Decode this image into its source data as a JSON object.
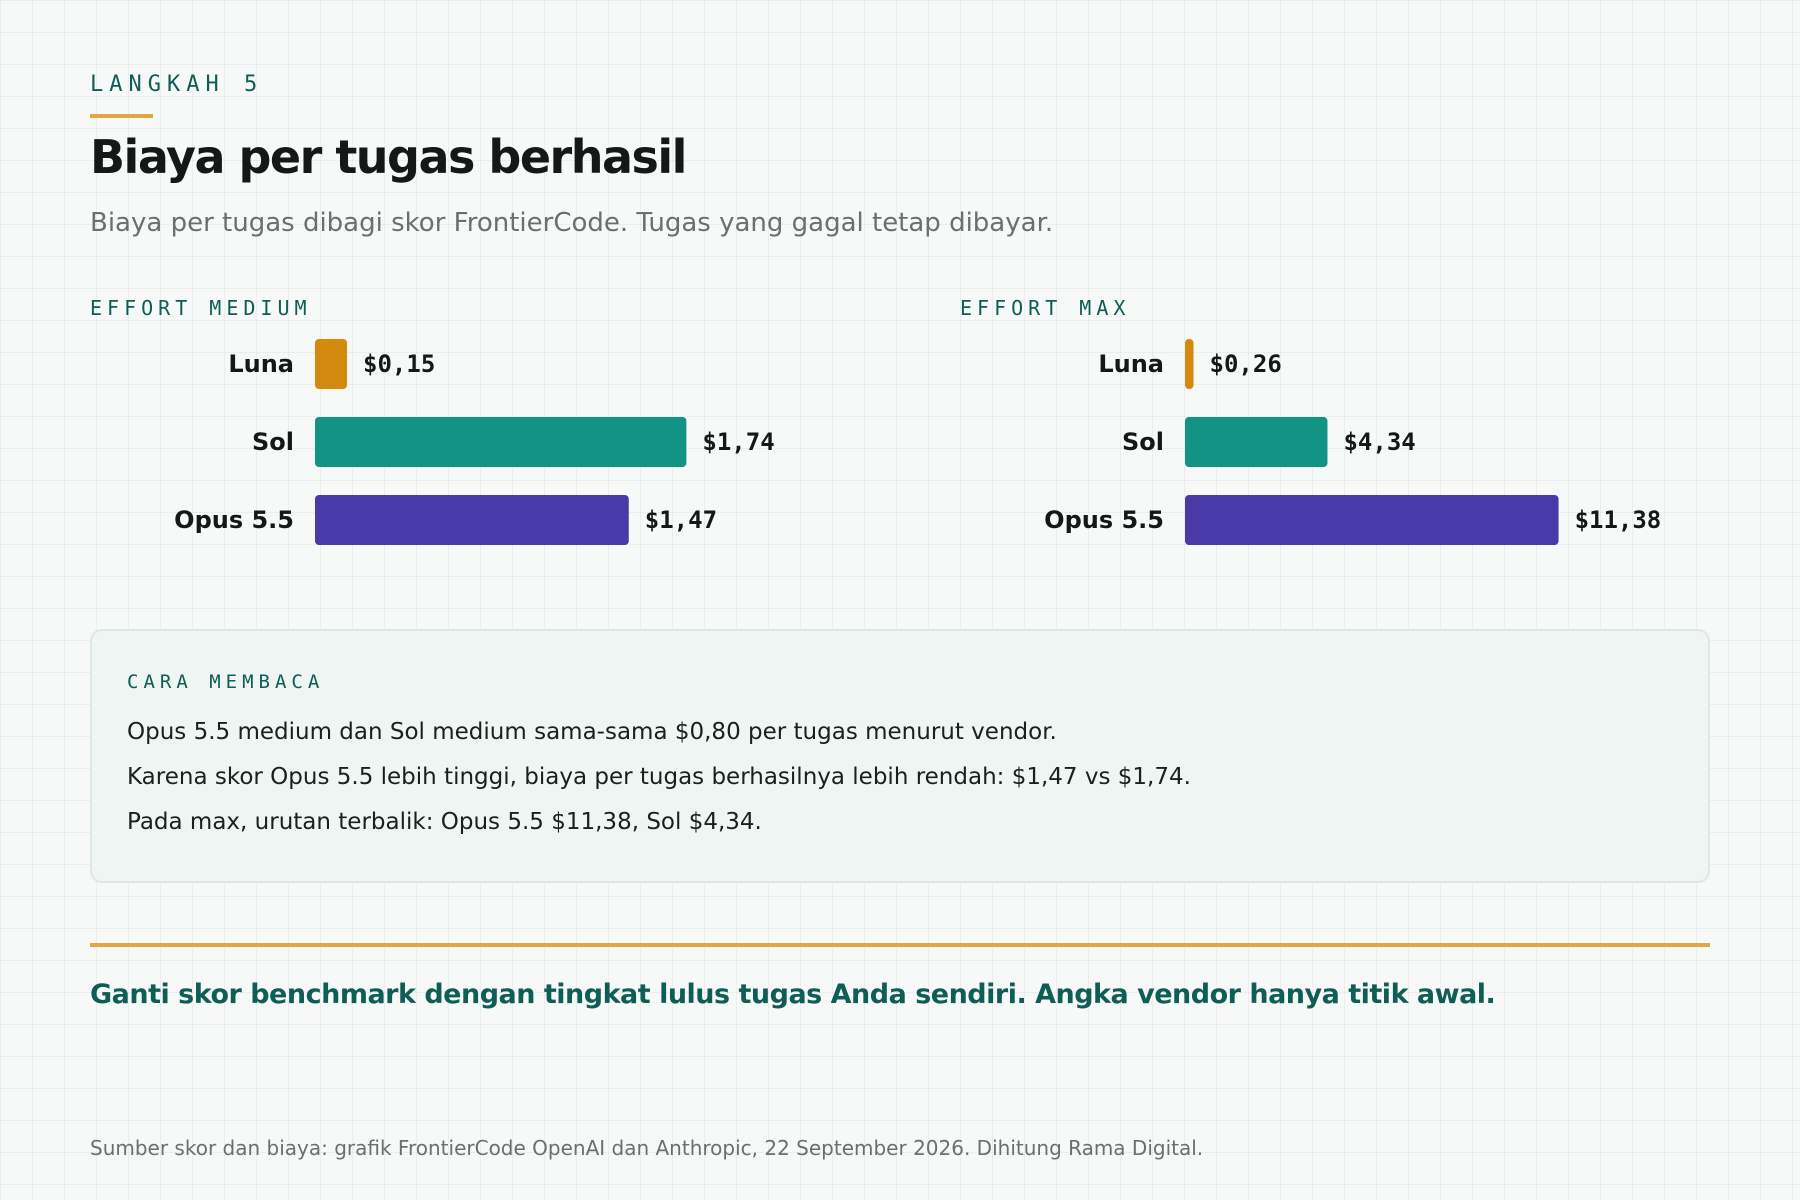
{
  "header": {
    "eyebrow": "LANGKAH 5",
    "title": "Biaya per tugas berhasil",
    "subtitle": "Biaya per tugas dibagi skor FrontierCode. Tugas yang gagal tetap dibayar."
  },
  "colors": {
    "accent": "#e0a83e",
    "teal_text": "#0f5e56",
    "luna": "#d4890f",
    "sol": "#129384",
    "opus": "#4a3aa8"
  },
  "chart_data": [
    {
      "type": "bar",
      "orientation": "horizontal",
      "title": "EFFORT MEDIUM",
      "categories": [
        "Luna",
        "Sol",
        "Opus 5.5"
      ],
      "values": [
        0.15,
        1.74,
        1.47
      ],
      "value_labels": [
        "$0,15",
        "$1,74",
        "$1,47"
      ],
      "colors": [
        "#d4890f",
        "#129384",
        "#4a3aa8"
      ],
      "xlim": [
        0,
        2.23
      ],
      "grid": false,
      "xlabel": "",
      "ylabel": ""
    },
    {
      "type": "bar",
      "orientation": "horizontal",
      "title": "EFFORT MAX",
      "categories": [
        "Luna",
        "Sol",
        "Opus 5.5"
      ],
      "values": [
        0.26,
        4.34,
        11.38
      ],
      "value_labels": [
        "$0,26",
        "$4,34",
        "$11,38"
      ],
      "colors": [
        "#d4890f",
        "#129384",
        "#4a3aa8"
      ],
      "xlim": [
        0,
        14.5
      ],
      "grid": false,
      "xlabel": "",
      "ylabel": ""
    }
  ],
  "note": {
    "title": "CARA MEMBACA",
    "lines": [
      "Opus 5.5 medium dan Sol medium sama-sama $0,80 per tugas menurut vendor.",
      "Karena skor Opus 5.5 lebih tinggi, biaya per tugas berhasilnya lebih rendah: $1,47 vs $1,74.",
      "Pada max, urutan terbalik: Opus 5.5 $11,38, Sol $4,34."
    ]
  },
  "callout": "Ganti skor benchmark dengan tingkat lulus tugas Anda sendiri. Angka vendor hanya titik awal.",
  "footer": "Sumber skor dan biaya: grafik FrontierCode OpenAI dan Anthropic, 22 September 2026. Dihitung Rama Digital."
}
